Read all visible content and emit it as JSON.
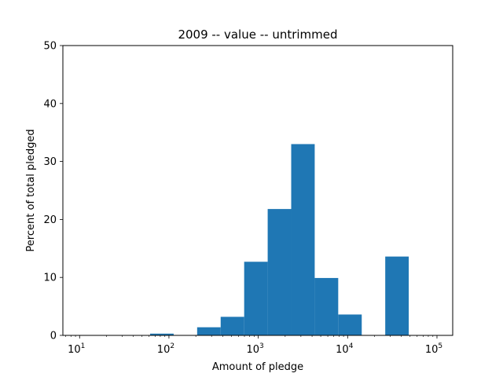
{
  "chart_data": {
    "type": "bar",
    "title": "2009 -- value -- untrimmed",
    "xlabel": "Amount of pledge",
    "ylabel": "Percent of total pledged",
    "x_scale": "log",
    "xlim": [
      6.5,
      150000
    ],
    "ylim": [
      0,
      50
    ],
    "grid": false,
    "legend": "none",
    "bar_color": "#1f77b4",
    "x_ticks": [
      {
        "value": 10,
        "base": "10",
        "exp": "1"
      },
      {
        "value": 100,
        "base": "10",
        "exp": "2"
      },
      {
        "value": 1000,
        "base": "10",
        "exp": "3"
      },
      {
        "value": 10000,
        "base": "10",
        "exp": "4"
      },
      {
        "value": 100000,
        "base": "10",
        "exp": "5"
      }
    ],
    "y_ticks": [
      "0",
      "10",
      "20",
      "30",
      "40",
      "50"
    ],
    "bins": [
      {
        "x0": 10,
        "x1": 18.3,
        "value": 0
      },
      {
        "x0": 18.3,
        "x1": 33.6,
        "value": 0
      },
      {
        "x0": 33.6,
        "x1": 61.6,
        "value": 0
      },
      {
        "x0": 61.6,
        "x1": 112.9,
        "value": 0.3
      },
      {
        "x0": 112.9,
        "x1": 206.9,
        "value": 0
      },
      {
        "x0": 206.9,
        "x1": 379.3,
        "value": 1.4
      },
      {
        "x0": 379.3,
        "x1": 695.2,
        "value": 3.2
      },
      {
        "x0": 695.2,
        "x1": 1274.3,
        "value": 12.7
      },
      {
        "x0": 1274.3,
        "x1": 2335.7,
        "value": 21.8
      },
      {
        "x0": 2335.7,
        "x1": 4281.3,
        "value": 33.0
      },
      {
        "x0": 4281.3,
        "x1": 7847.6,
        "value": 9.9
      },
      {
        "x0": 7847.6,
        "x1": 14384.5,
        "value": 3.6
      },
      {
        "x0": 14384.5,
        "x1": 26366.5,
        "value": 0
      },
      {
        "x0": 26366.5,
        "x1": 48329.3,
        "value": 13.6
      },
      {
        "x0": 48329.3,
        "x1": 100000,
        "value": 0
      }
    ]
  }
}
